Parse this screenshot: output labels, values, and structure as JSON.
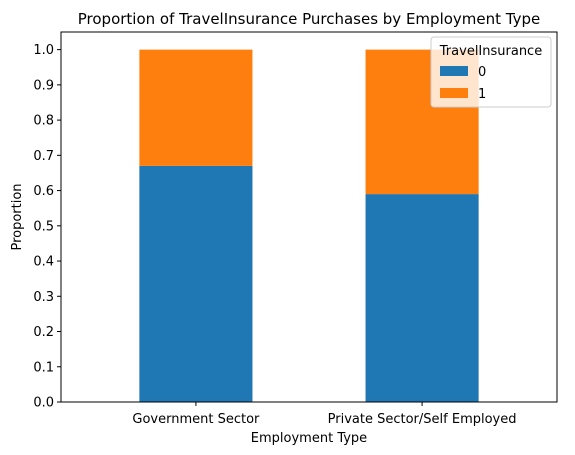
{
  "chart_data": {
    "type": "bar",
    "stacked": true,
    "title": "Proportion of TravelInsurance Purchases by Employment Type",
    "xlabel": "Employment Type",
    "ylabel": "Proportion",
    "categories": [
      "Government Sector",
      "Private Sector/Self Employed"
    ],
    "series": [
      {
        "name": "0",
        "values": [
          0.67,
          0.59
        ],
        "color": "#1f77b4"
      },
      {
        "name": "1",
        "values": [
          0.33,
          0.41
        ],
        "color": "#ff7f0e"
      }
    ],
    "ylim": [
      0,
      1.05
    ],
    "yticks": [
      "0.0",
      "0.1",
      "0.2",
      "0.3",
      "0.4",
      "0.5",
      "0.6",
      "0.7",
      "0.8",
      "0.9",
      "1.0"
    ],
    "grid": false,
    "legend": {
      "title": "TravelInsurance",
      "placement": "top-right"
    }
  }
}
